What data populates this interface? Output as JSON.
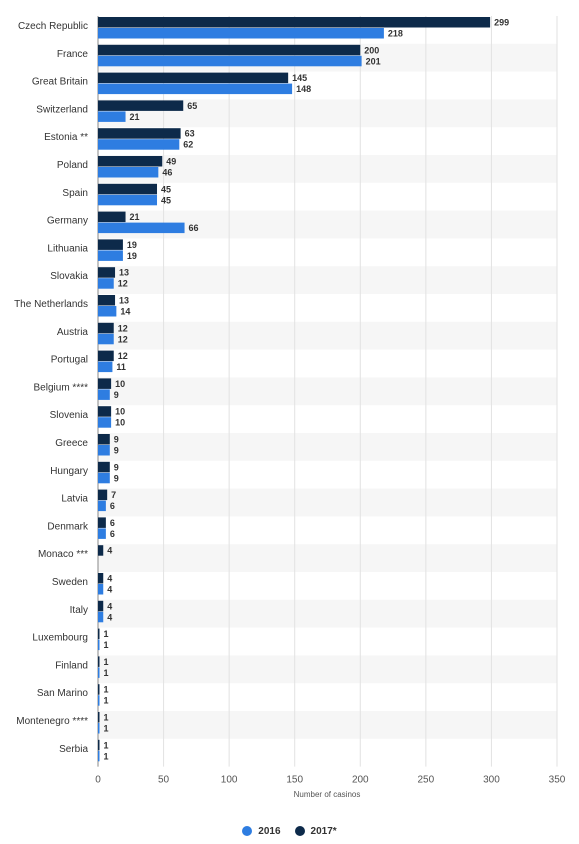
{
  "chart_data": {
    "type": "bar",
    "orientation": "horizontal",
    "categories": [
      "Czech Republic",
      "France",
      "Great Britain",
      "Switzerland",
      "Estonia **",
      "Poland",
      "Spain",
      "Germany",
      "Lithuania",
      "Slovakia",
      "The Netherlands",
      "Austria",
      "Portugal",
      "Belgium ****",
      "Slovenia",
      "Greece",
      "Hungary",
      "Latvia",
      "Denmark",
      "Monaco ***",
      "Sweden",
      "Italy",
      "Luxembourg",
      "Finland",
      "San Marino",
      "Montenegro ****",
      "Serbia"
    ],
    "series": [
      {
        "name": "2017*",
        "color": "#0d2a4a",
        "values": [
          299,
          200,
          145,
          65,
          63,
          49,
          45,
          21,
          19,
          13,
          13,
          12,
          12,
          10,
          10,
          9,
          9,
          7,
          6,
          4,
          4,
          4,
          1,
          1,
          1,
          1,
          1
        ]
      },
      {
        "name": "2016",
        "color": "#2e7de1",
        "values": [
          218,
          201,
          148,
          21,
          62,
          46,
          45,
          66,
          19,
          12,
          14,
          12,
          11,
          9,
          10,
          9,
          9,
          6,
          6,
          null,
          4,
          4,
          1,
          1,
          1,
          1,
          1
        ]
      }
    ],
    "xlim": [
      0,
      350
    ],
    "xticks": [
      "0",
      "50",
      "100",
      "150",
      "200",
      "250",
      "300",
      "350"
    ],
    "xlabel": "Number of casinos",
    "ylabel": "",
    "title": "",
    "grid": true,
    "legend_position": "bottom-center",
    "legend": [
      {
        "label": "2016",
        "color": "#2e7de1"
      },
      {
        "label": "2017*",
        "color": "#0d2a4a"
      }
    ]
  }
}
